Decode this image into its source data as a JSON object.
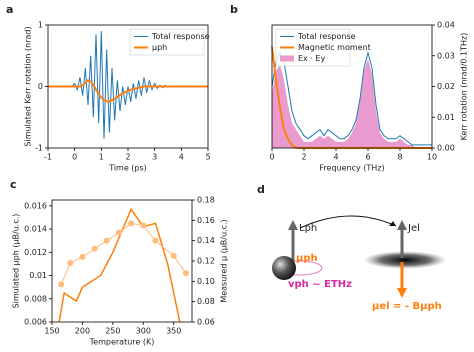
{
  "chart_data": [
    {
      "type": "line",
      "panel": "a",
      "xlabel": "Time (ps)",
      "ylabel": "Simulated Kerr rotation (nrad)",
      "xlim": [
        -1,
        5
      ],
      "xticks": [
        -1,
        0,
        1,
        2,
        3,
        4,
        5
      ],
      "ylim": [
        -1,
        1
      ],
      "yticks": [
        -1,
        0,
        1
      ],
      "legend": "upper right",
      "x": [
        -1,
        -0.9,
        -0.8,
        -0.7,
        -0.6,
        -0.5,
        -0.4,
        -0.3,
        -0.2,
        -0.1,
        0,
        0.1,
        0.2,
        0.3,
        0.4,
        0.5,
        0.6,
        0.7,
        0.8,
        0.9,
        1,
        1.1,
        1.2,
        1.3,
        1.4,
        1.5,
        1.6,
        1.7,
        1.8,
        1.9,
        2,
        2.1,
        2.2,
        2.3,
        2.4,
        2.5,
        2.6,
        2.7,
        2.8,
        2.9,
        3,
        3.1,
        3.2,
        3.3,
        3.4,
        3.5,
        3.6,
        3.7,
        3.8,
        3.9,
        4,
        4.1,
        4.2,
        4.3,
        4.4,
        4.5,
        4.6,
        4.7,
        4.8,
        4.9,
        5
      ],
      "series": [
        {
          "name": "Total response",
          "color": "#1f77b4",
          "width": 1,
          "values": [
            0,
            0,
            0,
            0,
            0,
            0,
            0,
            0,
            0,
            0,
            0.05,
            -0.05,
            0.15,
            -0.15,
            0.3,
            -0.3,
            0.5,
            -0.5,
            0.85,
            -0.6,
            0.9,
            -0.85,
            0.6,
            -0.75,
            0.3,
            -0.55,
            0.1,
            -0.4,
            0,
            -0.3,
            0,
            -0.25,
            0.05,
            -0.2,
            0.1,
            -0.15,
            0.15,
            -0.1,
            0.1,
            -0.05,
            0.05,
            -0.03,
            0.02,
            -0.02,
            0.02,
            -0.01,
            0.01,
            0,
            0,
            0,
            0,
            0,
            0,
            0,
            0,
            0,
            0,
            0,
            0,
            0,
            0
          ]
        },
        {
          "name": "μph",
          "color": "#ff7f0e",
          "width": 2,
          "values": [
            0,
            0,
            0,
            0,
            0,
            0,
            0,
            0,
            0,
            0,
            0,
            0,
            0,
            0.02,
            0.06,
            0.1,
            0.08,
            0.03,
            -0.05,
            -0.12,
            -0.18,
            -0.22,
            -0.24,
            -0.24,
            -0.22,
            -0.2,
            -0.17,
            -0.14,
            -0.11,
            -0.09,
            -0.07,
            -0.05,
            -0.04,
            -0.03,
            -0.02,
            -0.01,
            0,
            0,
            0,
            0,
            0,
            0,
            0,
            0,
            0,
            0,
            0,
            0,
            0,
            0,
            0,
            0,
            0,
            0,
            0,
            0,
            0,
            0,
            0,
            0,
            0
          ]
        }
      ]
    },
    {
      "type": "line",
      "panel": "b",
      "xlabel": "Frequency (THz)",
      "ylabel": "Kerr rotation (nrad/0.1THz)",
      "yaxis_side": "right",
      "xlim": [
        0,
        10
      ],
      "xticks": [
        0,
        2,
        4,
        6,
        8,
        10
      ],
      "ylim": [
        0,
        0.04
      ],
      "yticks": [
        {
          "value": 0,
          "label": "0.00"
        },
        0.01,
        0.02,
        0.03,
        0.04
      ],
      "legend": "upper left",
      "x": [
        0,
        0.25,
        0.5,
        0.75,
        1,
        1.25,
        1.5,
        1.75,
        2,
        2.25,
        2.5,
        2.75,
        3,
        3.25,
        3.5,
        3.75,
        4,
        4.25,
        4.5,
        4.75,
        5,
        5.25,
        5.5,
        5.75,
        6,
        6.25,
        6.5,
        6.75,
        7,
        7.25,
        7.5,
        7.75,
        8,
        8.25,
        8.5,
        8.75,
        9,
        9.25,
        9.5,
        9.75,
        10
      ],
      "series": [
        {
          "name": "Total response",
          "color": "#1f77b4",
          "width": 1,
          "values": [
            0.02,
            0.028,
            0.031,
            0.028,
            0.02,
            0.012,
            0.008,
            0.006,
            0.004,
            0.003,
            0.004,
            0.005,
            0.006,
            0.004,
            0.006,
            0.005,
            0.004,
            0.003,
            0.003,
            0.004,
            0.006,
            0.009,
            0.016,
            0.026,
            0.031,
            0.026,
            0.014,
            0.006,
            0.004,
            0.003,
            0.003,
            0.003,
            0.004,
            0.003,
            0.002,
            0.001,
            0.001,
            0.001,
            0.001,
            0.001,
            0.001
          ]
        },
        {
          "name": "Magnetic moment",
          "color": "#ff7f0e",
          "width": 2,
          "values": [
            0.033,
            0.022,
            0.013,
            0.006,
            0.003,
            0.001,
            0,
            0,
            0,
            0,
            0,
            0,
            0,
            0,
            0,
            0,
            0,
            0,
            0,
            0,
            0,
            0,
            0,
            0,
            0,
            0,
            0,
            0,
            0,
            0,
            0,
            0,
            0,
            0,
            0,
            0,
            0,
            0,
            0,
            0,
            0
          ]
        },
        {
          "name": "Ex · Ey",
          "color": "#e99bd0",
          "kind": "area",
          "values": [
            0.018,
            0.025,
            0.027,
            0.022,
            0.014,
            0.008,
            0.006,
            0.004,
            0.002,
            0.002,
            0.002,
            0.003,
            0.004,
            0.003,
            0.004,
            0.003,
            0.002,
            0.002,
            0.002,
            0.003,
            0.005,
            0.008,
            0.015,
            0.025,
            0.029,
            0.024,
            0.012,
            0.005,
            0.003,
            0.002,
            0.002,
            0.002,
            0.003,
            0.002,
            0.001,
            0.001,
            0,
            0,
            0,
            0,
            0
          ]
        }
      ]
    },
    {
      "type": "line",
      "panel": "c",
      "xlabel": "Temperature (K)",
      "ylabel": "Simulated μph (μB/u.c.)",
      "y2label": "Measured μ (μB/u.c.)",
      "xlim": [
        150,
        380
      ],
      "xticks": [
        150,
        200,
        250,
        300,
        350
      ],
      "ylim": [
        0.006,
        0.0165
      ],
      "yticks": [
        0.006,
        0.008,
        0.01,
        0.012,
        0.014,
        0.016
      ],
      "y2lim": [
        0.06,
        0.18
      ],
      "y2ticks": [
        0.06,
        0.08,
        {
          "value": 0.1,
          "label": "0.10"
        },
        0.12,
        0.14,
        0.16,
        0.18
      ],
      "series": [
        {
          "color": "#ff7f0e",
          "width": 1.5,
          "x": [
            160,
            170,
            190,
            200,
            230,
            250,
            280,
            300,
            320,
            340,
            360,
            375
          ],
          "values": [
            0.0055,
            0.0085,
            0.0078,
            0.009,
            0.01,
            0.012,
            0.0157,
            0.0142,
            0.0145,
            0.011,
            0.006,
            0.0045
          ]
        },
        {
          "color": "#ffbb78",
          "width": 1,
          "axis": "y2",
          "marker": true,
          "x": [
            165,
            180,
            200,
            220,
            240,
            260,
            280,
            300,
            320,
            350,
            370
          ],
          "values": [
            0.097,
            0.118,
            0.124,
            0.132,
            0.14,
            0.148,
            0.157,
            0.155,
            0.14,
            0.125,
            0.108
          ]
        }
      ]
    }
  ],
  "diagram": {
    "panel": "d",
    "l_ph": "Lph",
    "j_el": "Jel",
    "mu_ph": "μph",
    "v_ph": "vph ~ ETHz",
    "mu_el": "μel = - Bμph"
  }
}
